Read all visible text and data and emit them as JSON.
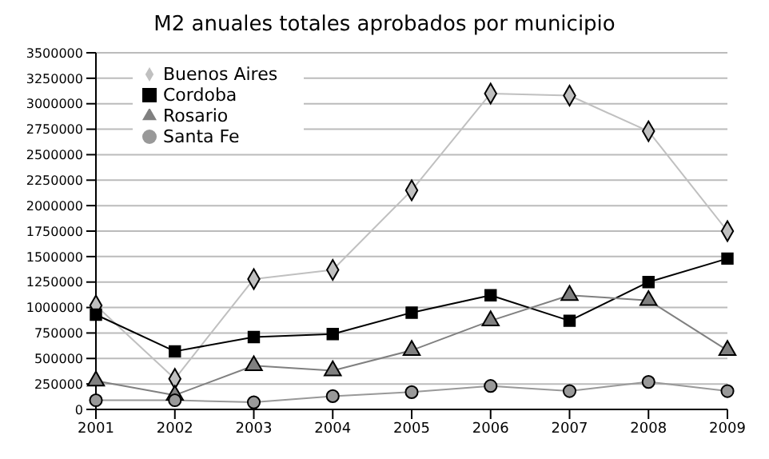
{
  "chart_data": {
    "type": "line",
    "title": "M2 anuales totales aprobados por municipio",
    "categories": [
      "2001",
      "2002",
      "2003",
      "2004",
      "2005",
      "2006",
      "2007",
      "2008",
      "2009"
    ],
    "series": [
      {
        "name": "Buenos Aires",
        "color": "#c0c0c0",
        "marker": "diamond",
        "values": [
          1020000,
          300000,
          1280000,
          1370000,
          2150000,
          3100000,
          3080000,
          2730000,
          1750000
        ]
      },
      {
        "name": "Cordoba",
        "color": "#000000",
        "marker": "square",
        "values": [
          930000,
          570000,
          710000,
          740000,
          950000,
          1120000,
          870000,
          1250000,
          1480000
        ]
      },
      {
        "name": "Rosario",
        "color": "#808080",
        "marker": "triangle",
        "values": [
          280000,
          140000,
          430000,
          380000,
          580000,
          870000,
          1120000,
          1070000,
          580000
        ]
      },
      {
        "name": "Santa Fe",
        "color": "#999999",
        "marker": "circle",
        "values": [
          90000,
          90000,
          70000,
          130000,
          170000,
          230000,
          180000,
          270000,
          180000
        ]
      }
    ],
    "ylim": [
      0,
      3500000
    ],
    "yticks": [
      0,
      250000,
      500000,
      750000,
      1000000,
      1250000,
      1500000,
      1750000,
      2000000,
      2250000,
      2500000,
      2750000,
      3000000,
      3250000,
      3500000
    ],
    "grid": "y",
    "legend": "top left"
  }
}
